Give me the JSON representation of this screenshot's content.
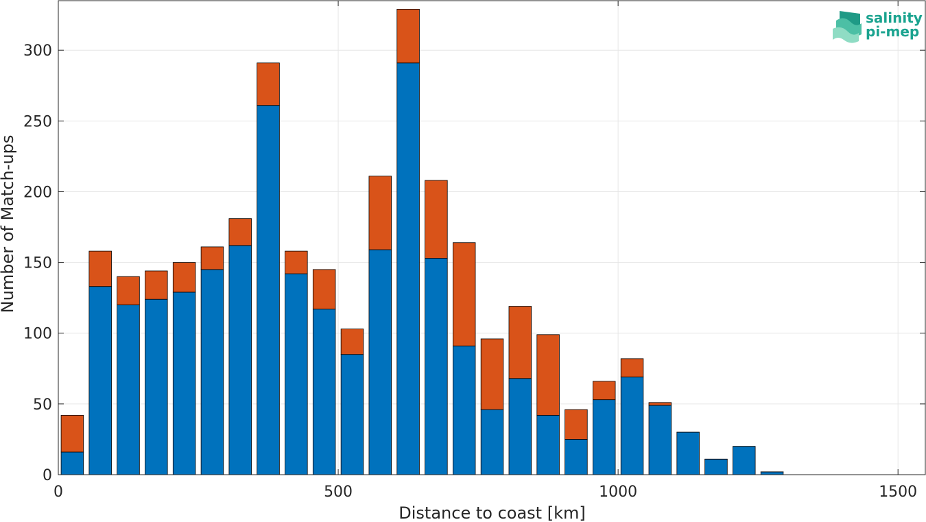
{
  "logo": {
    "line1": "salinity",
    "line2": "pi-mep",
    "colors": {
      "text": "#1aa38f",
      "icon_dark": "#1f9a86",
      "icon_light": "#7fd6bd"
    }
  },
  "chart_data": {
    "type": "bar",
    "stacked": true,
    "title": "",
    "xlabel": "Distance to coast [km]",
    "ylabel": "Number of Match-ups",
    "xlim": [
      0,
      1550
    ],
    "ylim": [
      0,
      335
    ],
    "x_ticks": [
      0,
      500,
      1000,
      1500
    ],
    "x_tick_labels": [
      "0",
      "500",
      "1000",
      "1500"
    ],
    "y_ticks": [
      0,
      50,
      100,
      150,
      200,
      250,
      300
    ],
    "y_tick_labels": [
      "0",
      "50",
      "100",
      "150",
      "200",
      "250",
      "300"
    ],
    "grid": true,
    "bin_width": 50,
    "bar_width_km": 40,
    "x": [
      25,
      75,
      125,
      175,
      225,
      275,
      325,
      375,
      425,
      475,
      525,
      575,
      625,
      675,
      725,
      775,
      825,
      875,
      925,
      975,
      1025,
      1075,
      1125,
      1175,
      1225,
      1275,
      1325,
      1375,
      1425,
      1475
    ],
    "series": [
      {
        "color": "#0072bd",
        "values": [
          16,
          133,
          120,
          124,
          129,
          145,
          162,
          261,
          142,
          117,
          85,
          159,
          291,
          153,
          91,
          46,
          68,
          42,
          25,
          53,
          69,
          49,
          30,
          11,
          20,
          2,
          0,
          0,
          0,
          0
        ]
      },
      {
        "color": "#d95319",
        "values": [
          26,
          25,
          20,
          20,
          21,
          16,
          19,
          30,
          16,
          28,
          18,
          52,
          38,
          55,
          73,
          50,
          51,
          57,
          21,
          13,
          13,
          2,
          0,
          0,
          0,
          0,
          0,
          0,
          0,
          0
        ]
      }
    ]
  }
}
